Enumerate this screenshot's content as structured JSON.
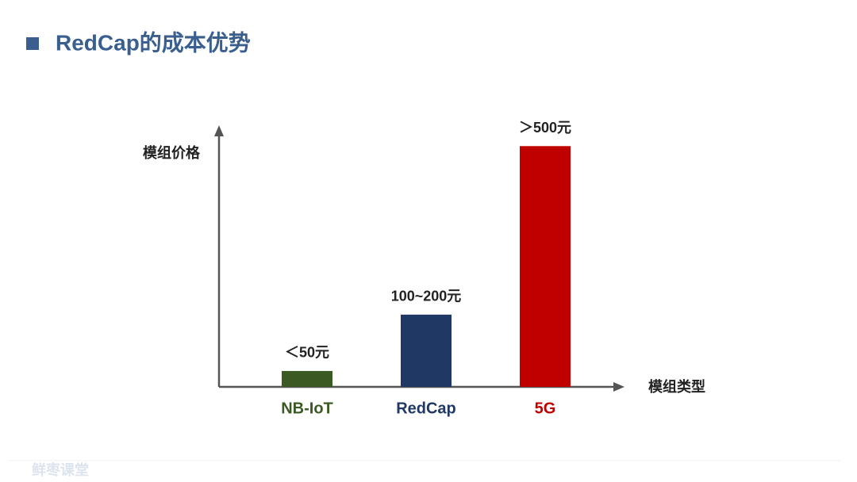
{
  "chart_data": {
    "type": "bar",
    "title": "RedCap的成本优势",
    "y_label": "模组价格",
    "x_label": "模组类型",
    "categories": [
      "NB-IoT",
      "RedCap",
      "5G"
    ],
    "values": [
      33,
      150,
      500
    ],
    "value_labels": [
      "＜50元",
      "100~200元",
      "＞500元"
    ],
    "colors": [
      "#3b5a23",
      "#1f3864",
      "#c00000"
    ],
    "ylim": [
      0,
      540
    ]
  },
  "watermark": "鲜枣课堂"
}
